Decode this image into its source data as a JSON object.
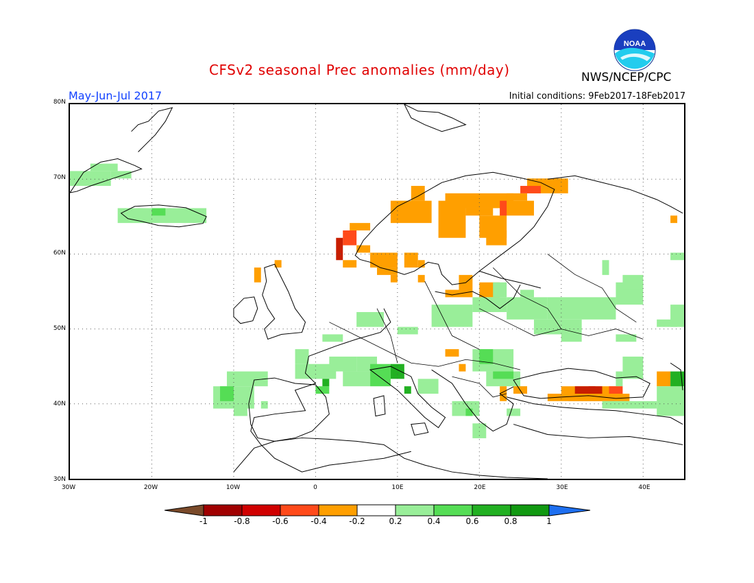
{
  "header": {
    "title": "CFSv2 seasonal Prec anomalies (mm/day)",
    "org": "NWS/NCEP/CPC",
    "season": "May-Jun-Jul 2017",
    "initial_conditions": "Initial conditions: 9Feb2017-18Feb2017",
    "logo_text": "NOAA"
  },
  "map": {
    "lat_labels": [
      "80N",
      "70N",
      "60N",
      "50N",
      "40N",
      "30N"
    ],
    "lon_labels": [
      "30W",
      "20W",
      "10W",
      "0",
      "10E",
      "20E",
      "30E",
      "40E"
    ],
    "colors": {
      "dry_strong": "#8b0000",
      "dry_med": "#c81e00",
      "dry_light": "#ff4a1a",
      "dry_weak": "#ff9f00",
      "wet_weak": "#99ee99",
      "wet_light": "#55dd55",
      "wet_med": "#22b022",
      "wet_strong": "#119911"
    }
  },
  "colorbar": {
    "labels": [
      "-1",
      "-0.8",
      "-0.6",
      "-0.4",
      "-0.2",
      "0.2",
      "0.4",
      "0.6",
      "0.8",
      "1"
    ],
    "colors": [
      "#7a4a2a",
      "#a00000",
      "#d00000",
      "#ff4a1a",
      "#ff9f00",
      "#ffffff",
      "#99ee99",
      "#55dd55",
      "#22b022",
      "#119911",
      "#1e6ff0"
    ]
  }
}
